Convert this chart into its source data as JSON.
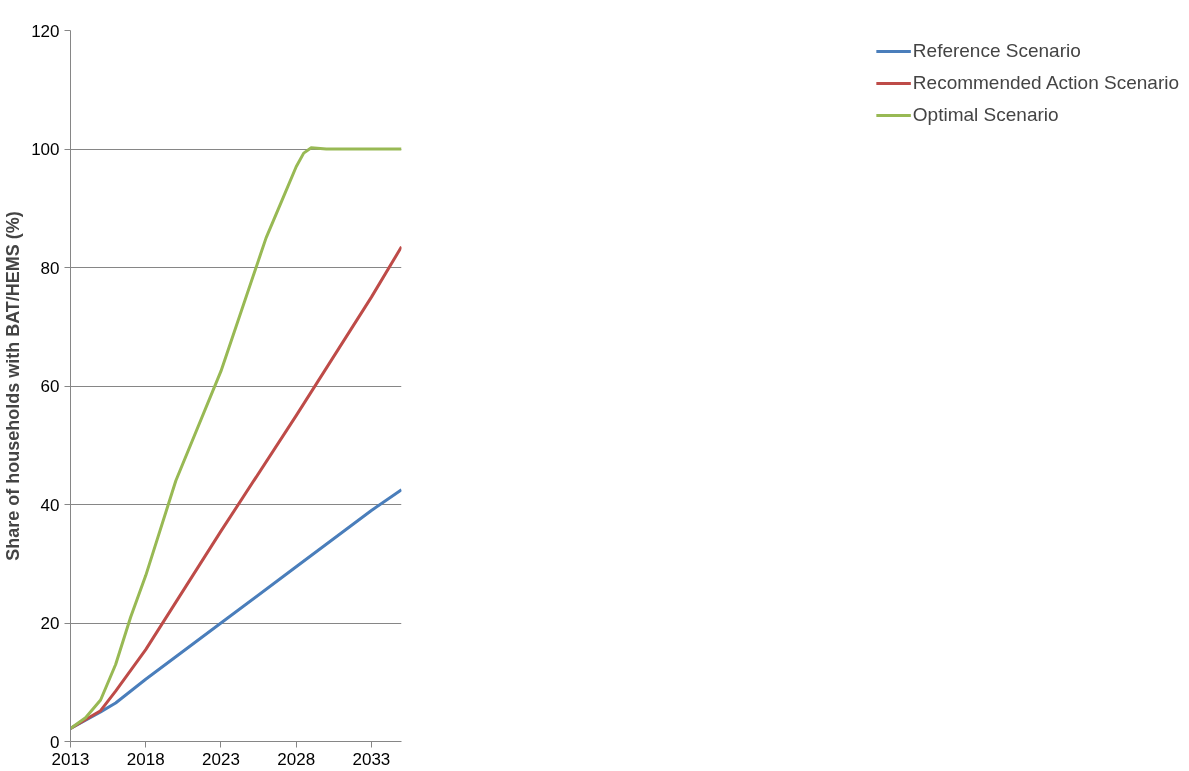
{
  "chart_data": {
    "type": "line",
    "ylabel": "Share of households with BAT/HEMS (%)",
    "xlim": [
      2013,
      2035
    ],
    "xticks": [
      2013,
      2018,
      2023,
      2028,
      2033
    ],
    "ylim": [
      0,
      120
    ],
    "yticks": [
      0,
      20,
      40,
      60,
      80,
      100,
      120
    ],
    "grid": "y",
    "legend": "right",
    "marker": "none",
    "line_style": "solid",
    "series": [
      {
        "name": "Reference Scenario",
        "color": "#4a7ebb",
        "x": [
          2013,
          2015,
          2016,
          2018,
          2023,
          2028,
          2033,
          2035
        ],
        "values": [
          2.2,
          5,
          6.5,
          10.5,
          20,
          29.5,
          39,
          42.5
        ]
      },
      {
        "name": "Recommended Action Scenario",
        "color": "#be4b48",
        "x": [
          2013,
          2015,
          2016,
          2018,
          2023,
          2028,
          2033,
          2035
        ],
        "values": [
          2.2,
          5.2,
          8.5,
          15.5,
          35.5,
          55,
          75,
          83.5
        ]
      },
      {
        "name": "Optimal Scenario",
        "color": "#98b954",
        "x": [
          2013,
          2014,
          2015,
          2016,
          2017,
          2018,
          2020,
          2023,
          2026,
          2027,
          2028,
          2028.5,
          2029,
          2030,
          2035
        ],
        "values": [
          2.2,
          4,
          7,
          13,
          21,
          28,
          44,
          62.5,
          85,
          91,
          97,
          99.3,
          100.2,
          100,
          100
        ]
      }
    ]
  }
}
